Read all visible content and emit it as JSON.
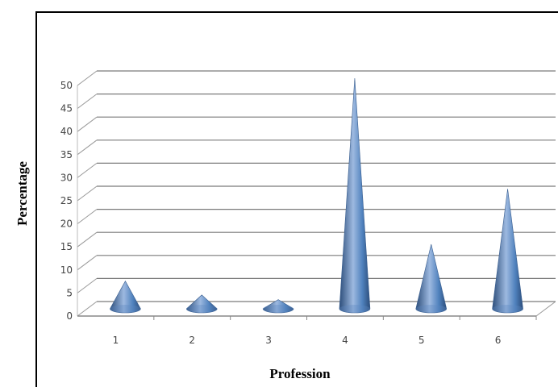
{
  "chart_data": {
    "type": "bar",
    "title": "",
    "xlabel": "Profession",
    "ylabel": "Percentage",
    "categories": [
      "1",
      "2",
      "3",
      "4",
      "5",
      "6"
    ],
    "values": [
      6,
      3,
      2,
      50,
      14,
      26
    ],
    "ylim": [
      0,
      50
    ],
    "yticks": [
      0,
      5,
      10,
      15,
      20,
      25,
      30,
      35,
      40,
      45,
      50
    ],
    "grid": true,
    "legend": "none",
    "style": "3d-cone",
    "colors": {
      "cone": "#4f81bd",
      "cone_light": "#9db9e0",
      "cone_dark": "#2c4d7a",
      "grid": "#808080"
    }
  }
}
